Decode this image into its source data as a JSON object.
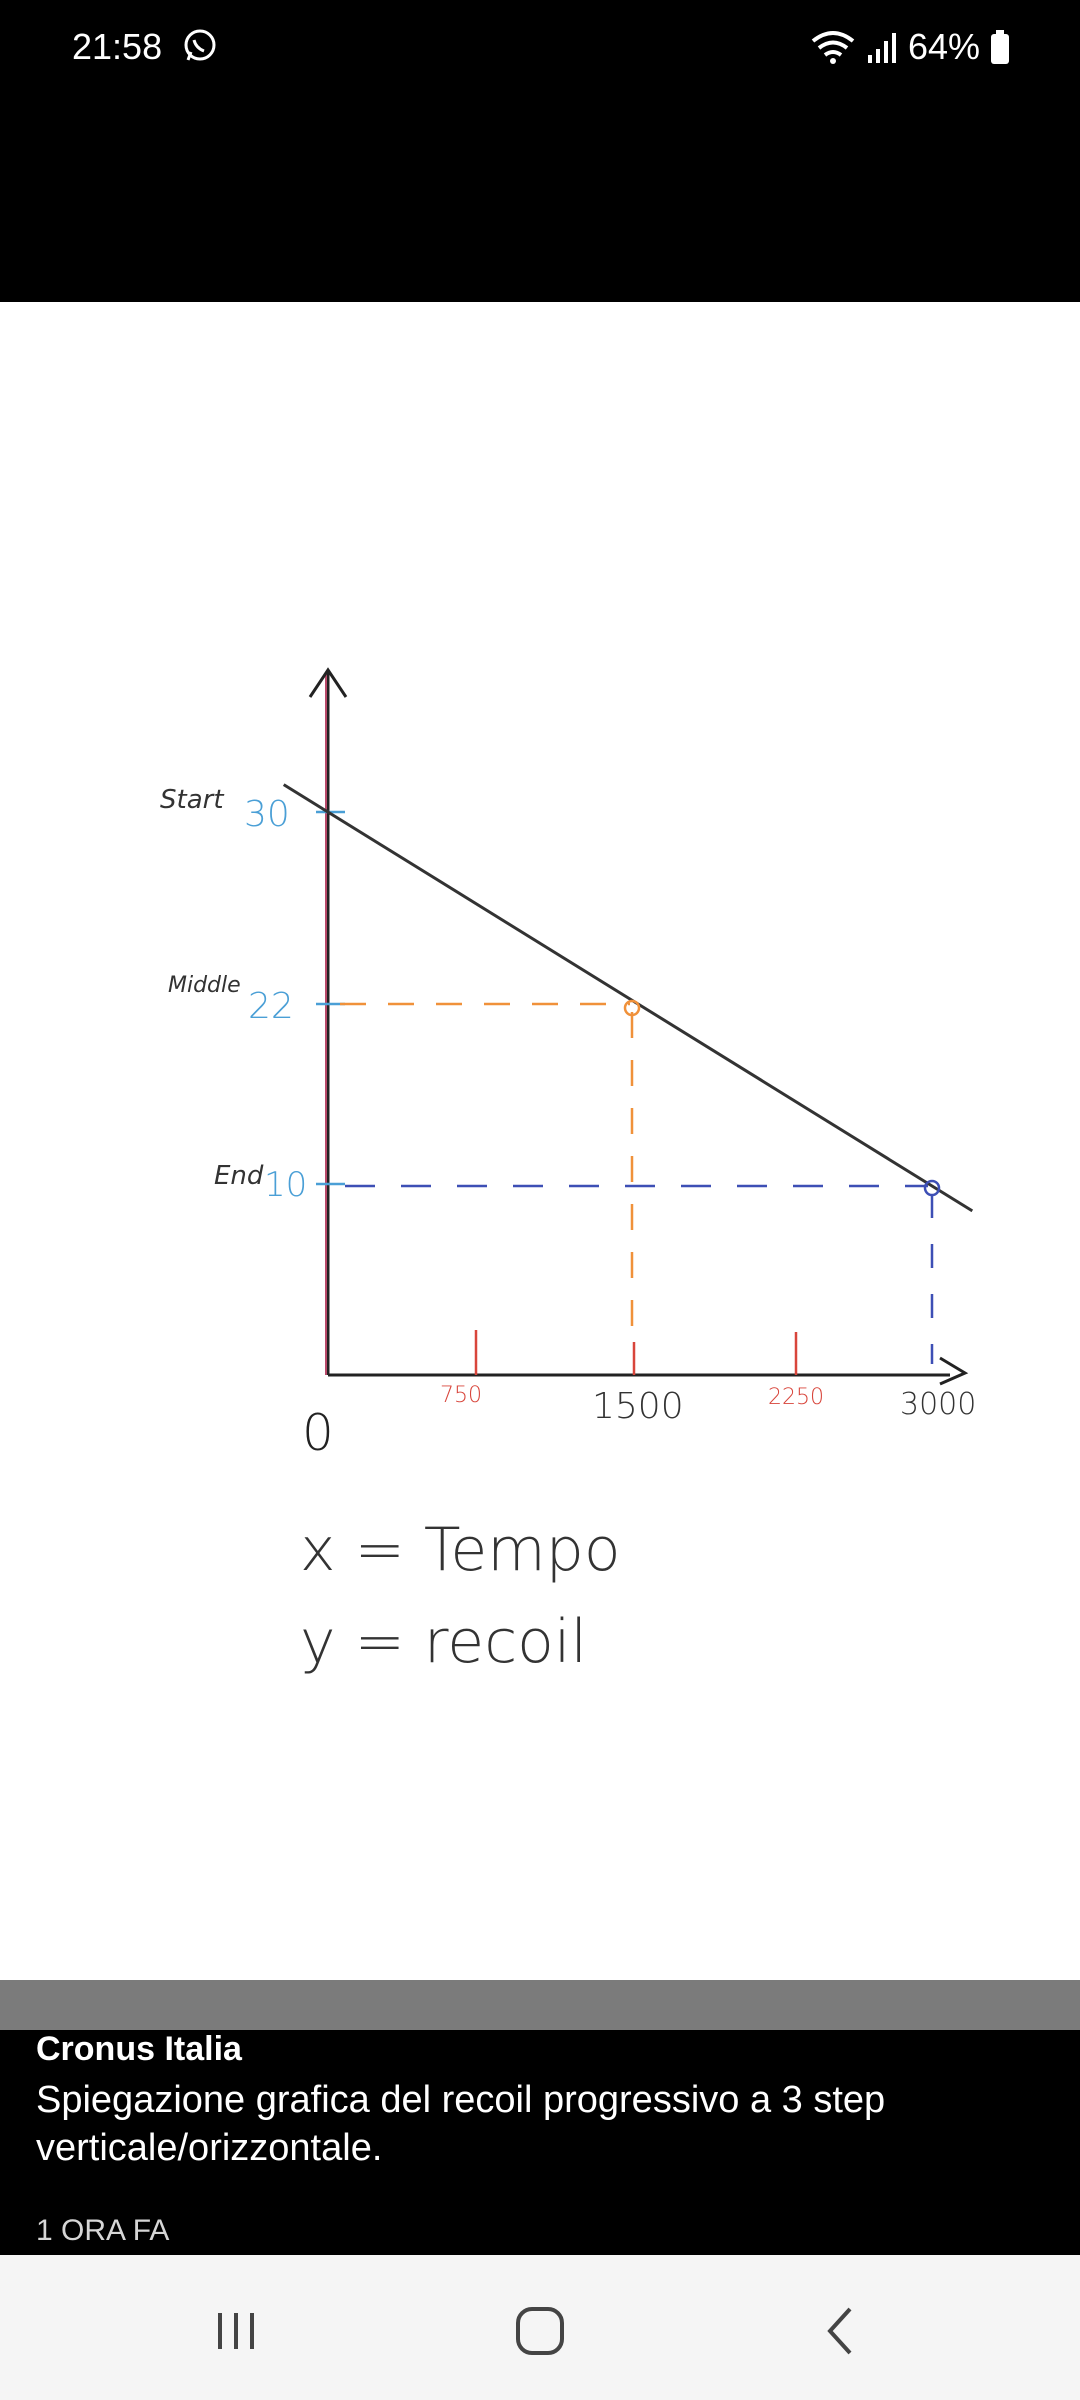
{
  "status_bar": {
    "time": "21:58",
    "battery": "64%",
    "icons": [
      "whatsapp-icon",
      "wifi-icon",
      "signal-icon",
      "battery-icon"
    ]
  },
  "image": {
    "chart_data": {
      "type": "line",
      "x": [
        0,
        1500,
        3000
      ],
      "y": [
        30,
        22,
        10
      ],
      "x_ticks": [
        "750",
        "1500",
        "2250",
        "3000"
      ],
      "y_ticks": [
        {
          "label": "Start",
          "value": "30"
        },
        {
          "label": "Middle",
          "value": "22"
        },
        {
          "label": "End",
          "value": "10"
        }
      ],
      "origin_label": "0",
      "legend_x": "x = Tempo",
      "legend_y": "y = recoil"
    }
  },
  "caption": {
    "author": "Cronus Italia",
    "text": "Spiegazione grafica del recoil progressivo a 3 step verticale/orizzontale.",
    "time_ago": "1 ORA FA"
  },
  "nav_bar": {
    "icons": [
      "recent-apps-icon",
      "home-icon",
      "back-icon"
    ]
  },
  "colors": {
    "blue_ticks": "#4a9fd6",
    "red_ticks": "#d8453b",
    "orange_guides": "#f0913a",
    "blue_guides": "#3d4fb5"
  }
}
